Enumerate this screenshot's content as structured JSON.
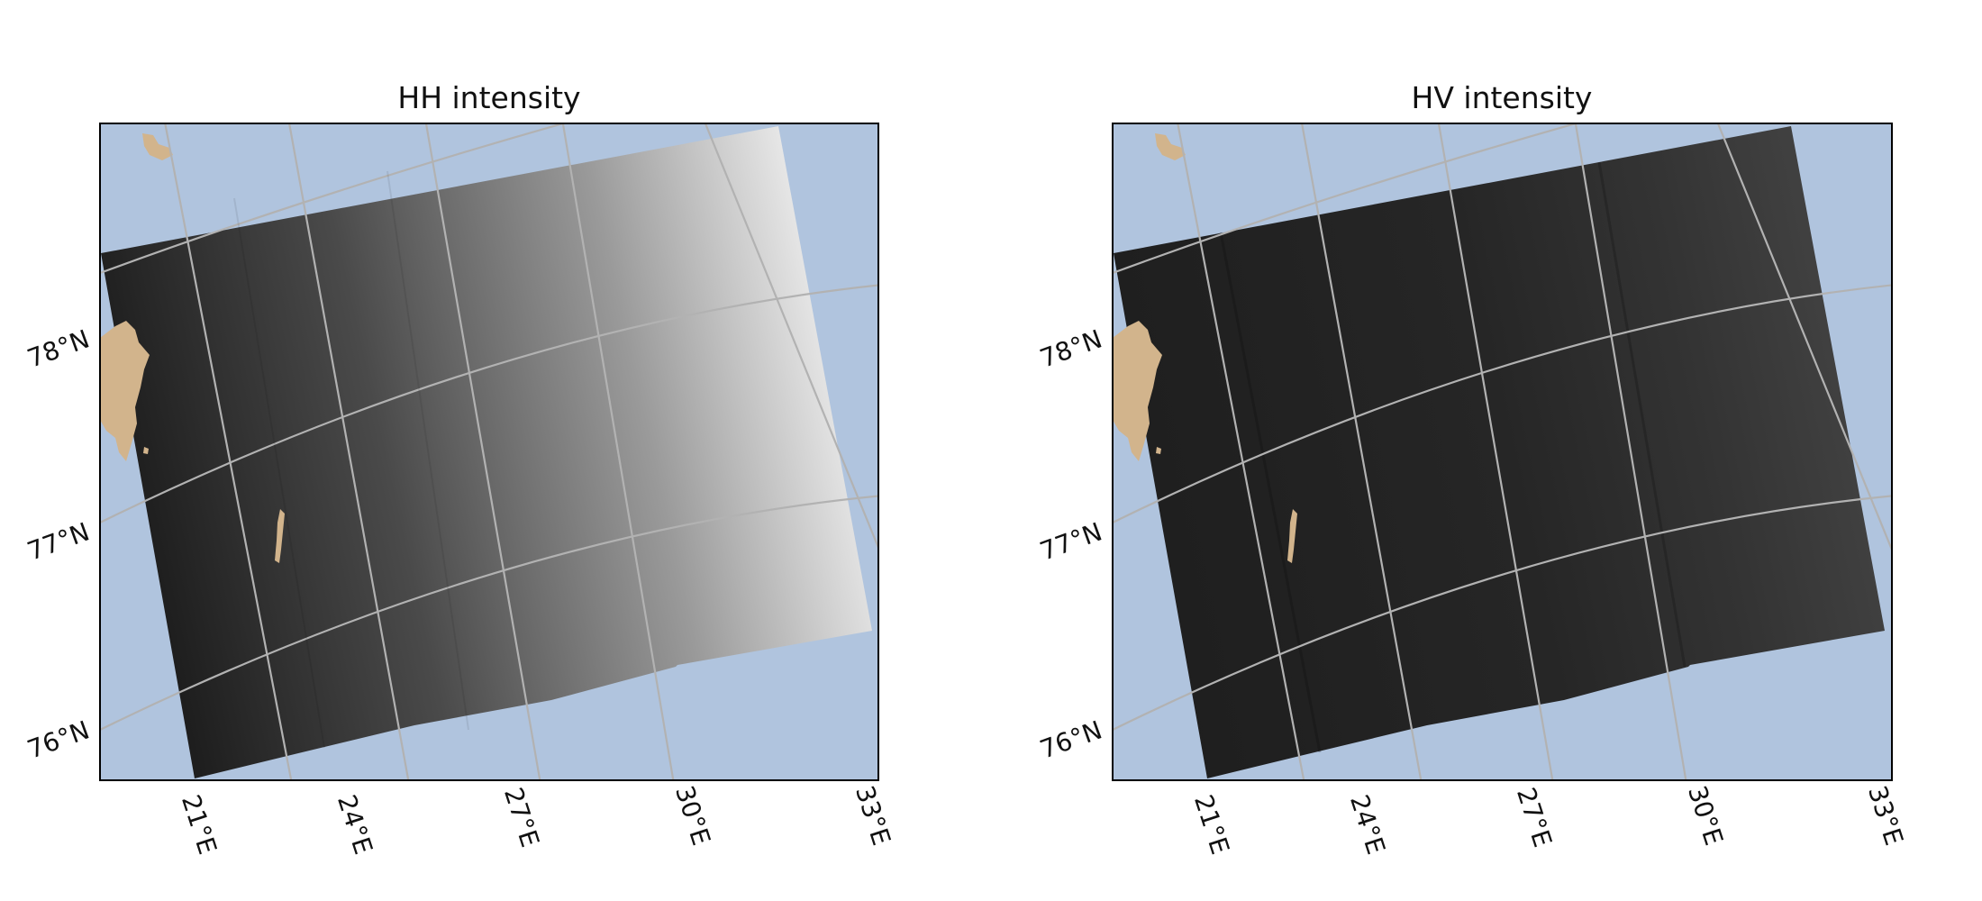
{
  "colors": {
    "ocean": "#b0c4de",
    "land": "#d2b48c",
    "gridline": "#b2b2b2"
  },
  "panels": [
    {
      "id": "hh",
      "title": "HH intensity",
      "appearance": "gradient from near-black on the left to near-white on the right"
    },
    {
      "id": "hv",
      "title": "HV intensity",
      "appearance": "uniformly dark gray with subtle vertical banding"
    }
  ],
  "latitude_labels": [
    "78°N",
    "77°N",
    "76°N"
  ],
  "longitude_labels": [
    "21°E",
    "24°E",
    "27°E",
    "30°E",
    "33°E"
  ]
}
